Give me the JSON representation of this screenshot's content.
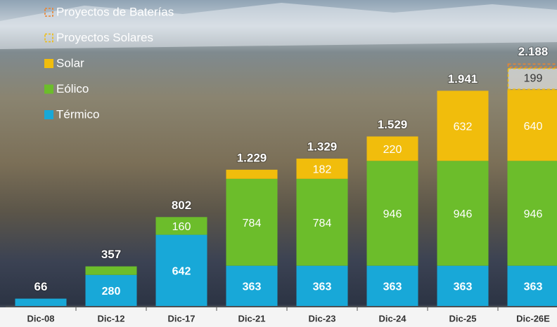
{
  "chart_data": {
    "type": "stacked-bar",
    "categories": [
      "Dic-08",
      "Dic-12",
      "Dic-17",
      "Dic-21",
      "Dic-23",
      "Dic-24",
      "Dic-25",
      "Dic-26E"
    ],
    "series": [
      {
        "name": "Térmico",
        "color": "#18a8d8",
        "dashed": false,
        "label_bold": true,
        "values": [
          66,
          280,
          642,
          363,
          363,
          363,
          363,
          363
        ]
      },
      {
        "name": "Eólico",
        "color": "#6cbd2b",
        "dashed": false,
        "label_bold": false,
        "values": [
          null,
          77,
          160,
          784,
          784,
          946,
          946,
          946
        ]
      },
      {
        "name": "Solar",
        "color": "#f1bd0c",
        "dashed": false,
        "label_bold": false,
        "values": [
          null,
          null,
          null,
          82,
          182,
          220,
          632,
          640
        ]
      },
      {
        "name": "Proyectos Solares",
        "color": "#f1bd0c",
        "dashed": true,
        "label_bold": false,
        "values": [
          null,
          null,
          null,
          null,
          null,
          null,
          null,
          199
        ]
      },
      {
        "name": "Proyectos de Baterías",
        "color": "#ea8430",
        "dashed": true,
        "label_bold": false,
        "values": [
          null,
          null,
          null,
          null,
          null,
          null,
          null,
          40
        ]
      }
    ],
    "totals": {
      "values": [
        66,
        357,
        802,
        1229,
        1329,
        1529,
        1941,
        2188
      ],
      "value_labels": [
        "66",
        "357",
        "802",
        "1.229",
        "1.329",
        "1.529",
        "1.941",
        "2.188"
      ]
    },
    "ylim": [
      0,
      2760
    ]
  }
}
